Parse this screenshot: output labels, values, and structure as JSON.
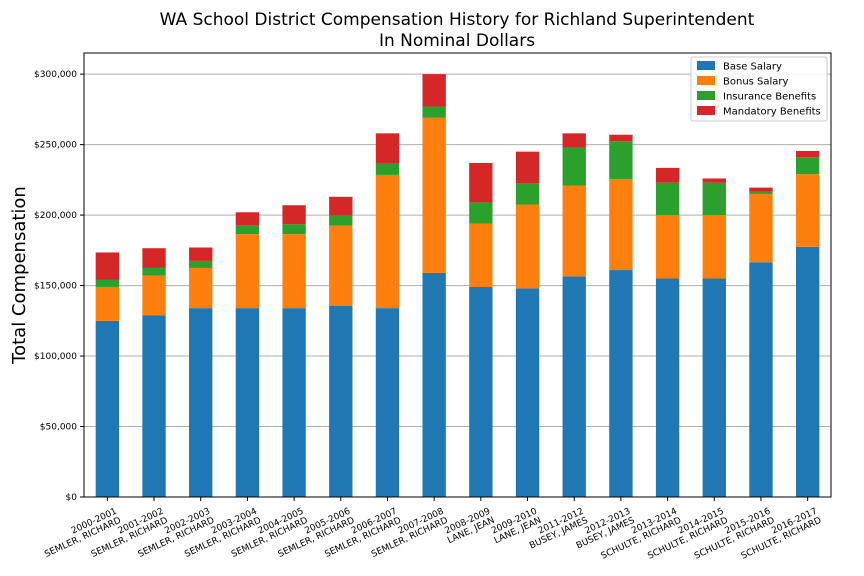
{
  "chart_data": {
    "type": "bar",
    "stacked": true,
    "title": "WA School District Compensation History for Richland Superintendent",
    "subtitle": "In Nominal Dollars",
    "xlabel": "",
    "ylabel": "Total Compensation",
    "ylim": [
      0,
      315000
    ],
    "yticks": [
      0,
      50000,
      100000,
      150000,
      200000,
      250000,
      300000
    ],
    "ytick_labels": [
      "$0",
      "$50,000",
      "$100,000",
      "$150,000",
      "$200,000",
      "$250,000",
      "$300,000"
    ],
    "grid": "horizontal",
    "legend_position": "top-right",
    "categories": [
      [
        "2000-2001",
        "SEMLER, RICHARD"
      ],
      [
        "2001-2002",
        "SEMLER, RICHARD"
      ],
      [
        "2002-2003",
        "SEMLER, RICHARD"
      ],
      [
        "2003-2004",
        "SEMLER, RICHARD"
      ],
      [
        "2004-2005",
        "SEMLER, RICHARD"
      ],
      [
        "2005-2006",
        "SEMLER, RICHARD"
      ],
      [
        "2006-2007",
        "SEMLER, RICHARD"
      ],
      [
        "2007-2008",
        "SEMLER, RICHARD"
      ],
      [
        "2008-2009",
        "LANE, JEAN"
      ],
      [
        "2009-2010",
        "LANE, JEAN"
      ],
      [
        "2011-2012",
        "BUSEY, JAMES"
      ],
      [
        "2012-2013",
        "BUSEY, JAMES"
      ],
      [
        "2013-2014",
        "SCHULTE, RICHARD"
      ],
      [
        "2014-2015",
        "SCHULTE, RICHARD"
      ],
      [
        "2015-2016",
        "SCHULTE, RICHARD"
      ],
      [
        "2016-2017",
        "SCHULTE, RICHARD"
      ]
    ],
    "series": [
      {
        "name": "Base Salary",
        "color": "#1f77b4",
        "values": [
          125000,
          129000,
          134000,
          134000,
          134000,
          135500,
          134000,
          159000,
          149000,
          148000,
          156500,
          161000,
          155000,
          155000,
          166500,
          177500
        ]
      },
      {
        "name": "Bonus Salary",
        "color": "#ff7f0e",
        "values": [
          24000,
          28000,
          28500,
          52500,
          52500,
          57000,
          94500,
          110000,
          45000,
          59500,
          64500,
          64500,
          45000,
          45000,
          48500,
          51500
        ]
      },
      {
        "name": "Insurance Benefits",
        "color": "#2ca02c",
        "values": [
          5000,
          5500,
          5000,
          6000,
          7000,
          7000,
          8000,
          8000,
          15000,
          15000,
          27000,
          27000,
          23000,
          23000,
          1500,
          12000
        ]
      },
      {
        "name": "Mandatory Benefits",
        "color": "#d62728",
        "values": [
          19500,
          14000,
          9500,
          9500,
          13500,
          13500,
          21500,
          23000,
          28000,
          22500,
          10000,
          4500,
          10500,
          3000,
          3000,
          4500
        ]
      }
    ]
  }
}
